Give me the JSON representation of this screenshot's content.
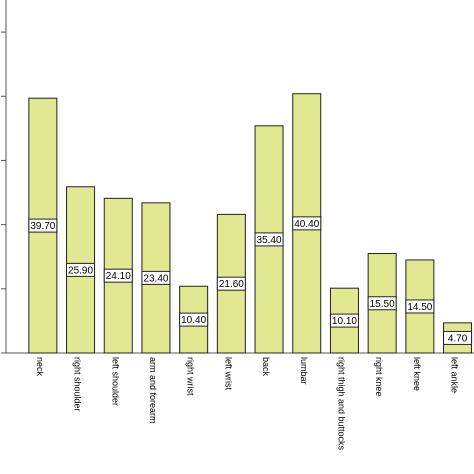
{
  "chart_data": {
    "type": "bar",
    "categories": [
      "neck",
      "right shoulder",
      "left shoulder",
      "arm and forearm",
      "right wrist",
      "left wrist",
      "back",
      "lumbar",
      "right thigh and buttocks",
      "right knee",
      "left knee",
      "left ankle"
    ],
    "values": [
      39.7,
      25.9,
      24.1,
      23.4,
      10.4,
      21.6,
      35.4,
      40.4,
      10.1,
      15.5,
      14.5,
      4.7
    ],
    "data_labels": [
      "39.70",
      "25.90",
      "24.10",
      "23.40",
      "10.40",
      "21.60",
      "35.40",
      "40.40",
      "10.10",
      "15.50",
      "14.50",
      "4.70"
    ],
    "ylim": [
      0,
      55
    ],
    "ytick_marks": [
      0,
      10,
      20,
      30,
      40,
      50
    ],
    "grid": false,
    "legend": "none",
    "bar_color": "#e1e892",
    "edge_color": "#222222"
  }
}
